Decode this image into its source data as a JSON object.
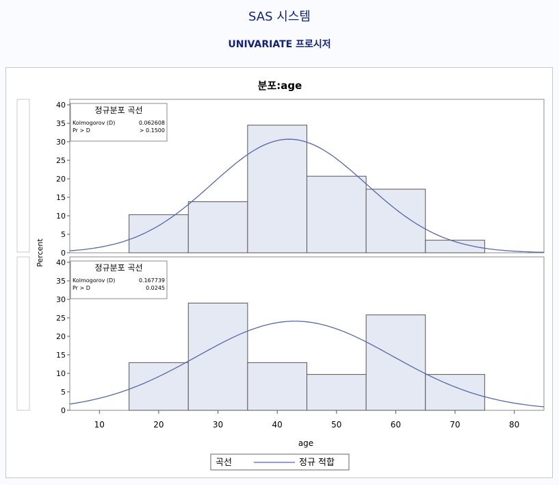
{
  "page": {
    "title": "SAS 시스템",
    "subtitle": "UNIVARIATE 프로시저"
  },
  "chart_data": {
    "type": "bar",
    "title": "분포:age",
    "xlabel": "age",
    "ylabel": "Percent",
    "xlim": [
      5,
      85
    ],
    "ylim": [
      0,
      40
    ],
    "x_ticks": [
      10,
      20,
      30,
      40,
      50,
      60,
      70,
      80
    ],
    "y_ticks": [
      0,
      5,
      10,
      15,
      20,
      25,
      30,
      35,
      40
    ],
    "grid": false,
    "bin_edges": [
      15,
      25,
      35,
      45,
      55,
      65,
      75
    ],
    "legend": {
      "title": "곡선",
      "entries": [
        {
          "label": "정규 적합",
          "color": "#5566aa"
        }
      ],
      "placement": "bottom"
    },
    "colors": {
      "bar_fill": "#e4e9f3",
      "bar_stroke": "#555555",
      "curve": "#5566aa"
    },
    "panels": [
      {
        "group_label": "",
        "bins": [
          {
            "x0": 15,
            "x1": 25,
            "value": 10.3
          },
          {
            "x0": 25,
            "x1": 35,
            "value": 13.8
          },
          {
            "x0": 35,
            "x1": 45,
            "value": 34.5
          },
          {
            "x0": 45,
            "x1": 55,
            "value": 20.7
          },
          {
            "x0": 55,
            "x1": 65,
            "value": 17.2
          },
          {
            "x0": 65,
            "x1": 75,
            "value": 3.4
          }
        ],
        "normal_fit": {
          "mean": 42,
          "sd": 13,
          "peak": 30.7
        },
        "inset": {
          "title": "정규분포 곡선",
          "rows": [
            {
              "label": "Kolmogorov (D)",
              "value": "0.062608"
            },
            {
              "label": "Pr > D",
              "value": "> 0.1500"
            }
          ]
        }
      },
      {
        "group_label": "",
        "bins": [
          {
            "x0": 15,
            "x1": 25,
            "value": 12.9
          },
          {
            "x0": 25,
            "x1": 35,
            "value": 29.0
          },
          {
            "x0": 35,
            "x1": 45,
            "value": 12.9
          },
          {
            "x0": 45,
            "x1": 55,
            "value": 9.7
          },
          {
            "x0": 55,
            "x1": 65,
            "value": 25.8
          },
          {
            "x0": 65,
            "x1": 75,
            "value": 9.7
          }
        ],
        "normal_fit": {
          "mean": 43,
          "sd": 16.5,
          "peak": 24.1
        },
        "inset": {
          "title": "정규분포 곡선",
          "rows": [
            {
              "label": "Kolmogorov (D)",
              "value": "0.167739"
            },
            {
              "label": "Pr > D",
              "value": "0.0245"
            }
          ]
        }
      }
    ]
  }
}
